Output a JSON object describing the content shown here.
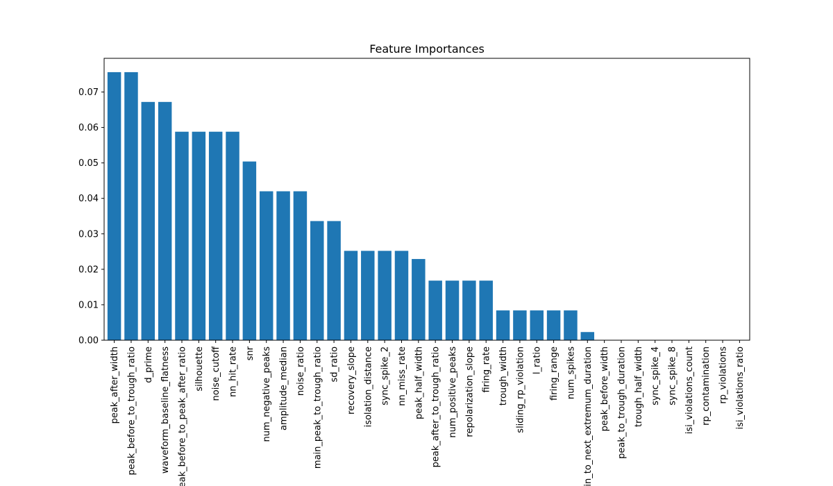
{
  "chart_data": {
    "type": "bar",
    "title": "Feature Importances",
    "xlabel": "",
    "ylabel": "",
    "ylim": [
      0,
      0.0795
    ],
    "yticks": [
      0.0,
      0.01,
      0.02,
      0.03,
      0.04,
      0.05,
      0.06,
      0.07
    ],
    "ytick_labels": [
      "0.00",
      "0.01",
      "0.02",
      "0.03",
      "0.04",
      "0.05",
      "0.06",
      "0.07"
    ],
    "grid": false,
    "bar_color": "#1f77b4",
    "categories": [
      "peak_after_width",
      "peak_before_to_trough_ratio",
      "d_prime",
      "waveform_baseline_flatness",
      "peak_before_to_peak_after_ratio",
      "silhouette",
      "noise_cutoff",
      "nn_hit_rate",
      "snr",
      "num_negative_peaks",
      "amplitude_median",
      "noise_ratio",
      "main_peak_to_trough_ratio",
      "sd_ratio",
      "recovery_slope",
      "isolation_distance",
      "sync_spike_2",
      "nn_miss_rate",
      "peak_half_width",
      "peak_after_to_trough_ratio",
      "num_positive_peaks",
      "repolarization_slope",
      "firing_rate",
      "trough_width",
      "sliding_rp_violation",
      "l_ratio",
      "firing_range",
      "num_spikes",
      "main_to_next_extremum_duration",
      "peak_before_width",
      "peak_to_trough_duration",
      "trough_half_width",
      "sync_spike_4",
      "sync_spike_8",
      "isi_violations_count",
      "rp_contamination",
      "rp_violations",
      "isi_violations_ratio"
    ],
    "values": [
      0.0756,
      0.0756,
      0.0672,
      0.0672,
      0.0588,
      0.0588,
      0.0588,
      0.0588,
      0.0504,
      0.042,
      0.042,
      0.042,
      0.0336,
      0.0336,
      0.0252,
      0.0252,
      0.0252,
      0.0252,
      0.0229,
      0.0168,
      0.0168,
      0.0168,
      0.0168,
      0.0084,
      0.0084,
      0.0084,
      0.0084,
      0.0084,
      0.0023,
      0.0,
      0.0,
      0.0,
      0.0,
      0.0,
      0.0,
      0.0,
      0.0,
      0.0
    ]
  }
}
